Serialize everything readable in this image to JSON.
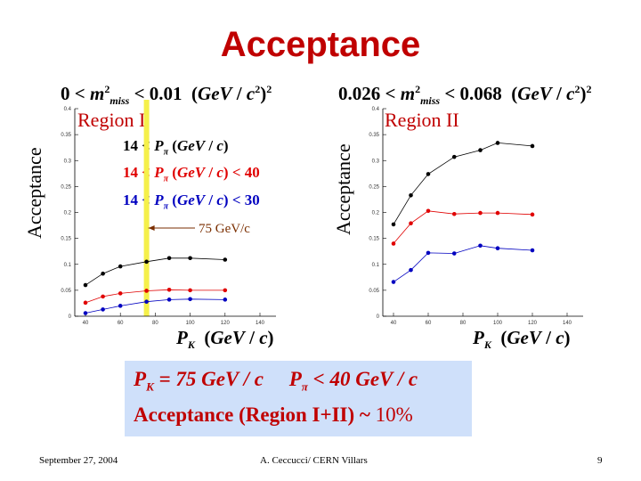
{
  "slide": {
    "title": "Acceptance",
    "box_line1": "P_K = 75 GeV / c    P_π < 40 GeV / c",
    "box_line2_a": "Acceptance (Region I+II) ~ ",
    "box_line2_b": "10%",
    "footer_date": "September 27, 2004",
    "footer_author": "A. Ceccucci/ CERN    Villars",
    "footer_page": "9"
  },
  "chart_data": [
    {
      "type": "line",
      "title": "0 < m²miss < 0.01 (GeV / c²)²",
      "region_label": "Region I",
      "ylabel": "Acceptance",
      "xlabel": "P_K (GeV / c)",
      "xlim": [
        40,
        140
      ],
      "ylim": [
        0,
        0.4
      ],
      "xticks": [
        40,
        60,
        80,
        100,
        120,
        140
      ],
      "xtick_labels": [
        "40",
        "60",
        "80",
        "100",
        "120",
        "140"
      ],
      "yticks": [
        0,
        0.05,
        0.1,
        0.15,
        0.2,
        0.25,
        0.3,
        0.35,
        0.4
      ],
      "ytick_labels": [
        "0",
        "0.05",
        "0.1",
        "0.15",
        "0.2",
        "0.25",
        "0.3",
        "0.35",
        "0.4"
      ],
      "annotation": "75 GeV/c",
      "highlight_x": 75,
      "series": [
        {
          "name": "14 < P_π (GeV / c)",
          "color": "#000000",
          "points": [
            [
              40,
              0.06
            ],
            [
              50,
              0.082
            ],
            [
              60,
              0.096
            ],
            [
              75,
              0.105
            ],
            [
              88,
              0.112
            ],
            [
              100,
              0.112
            ],
            [
              120,
              0.109
            ]
          ]
        },
        {
          "name": "14 < P_π (GeV / c) < 40",
          "color": "#e00000",
          "points": [
            [
              40,
              0.026
            ],
            [
              50,
              0.038
            ],
            [
              60,
              0.044
            ],
            [
              75,
              0.049
            ],
            [
              88,
              0.051
            ],
            [
              100,
              0.05
            ],
            [
              120,
              0.05
            ]
          ]
        },
        {
          "name": "14 < P_π (GeV / c) < 30",
          "color": "#0000c0",
          "points": [
            [
              40,
              0.006
            ],
            [
              50,
              0.013
            ],
            [
              60,
              0.02
            ],
            [
              75,
              0.028
            ],
            [
              88,
              0.032
            ],
            [
              100,
              0.033
            ],
            [
              120,
              0.032
            ]
          ]
        }
      ]
    },
    {
      "type": "line",
      "title": "0.026 < m²miss < 0.068 (GeV / c²)²",
      "region_label": "Region II",
      "ylabel": "Acceptance",
      "xlabel": "P_K (GeV / c)",
      "xlim": [
        40,
        140
      ],
      "ylim": [
        0,
        0.4
      ],
      "xticks": [
        40,
        60,
        80,
        100,
        120,
        140
      ],
      "xtick_labels": [
        "40",
        "60",
        "80",
        "100",
        "120",
        "140"
      ],
      "yticks": [
        0,
        0.05,
        0.1,
        0.15,
        0.2,
        0.25,
        0.3,
        0.35,
        0.4
      ],
      "ytick_labels": [
        "0",
        "0.05",
        "0.1",
        "0.15",
        "0.2",
        "0.25",
        "0.3",
        "0.35",
        "0.4"
      ],
      "series": [
        {
          "name": "",
          "color": "#000000",
          "points": [
            [
              40,
              0.177
            ],
            [
              50,
              0.233
            ],
            [
              60,
              0.274
            ],
            [
              75,
              0.307
            ],
            [
              90,
              0.32
            ],
            [
              100,
              0.334
            ],
            [
              120,
              0.328
            ]
          ]
        },
        {
          "name": "",
          "color": "#e00000",
          "points": [
            [
              40,
              0.14
            ],
            [
              50,
              0.179
            ],
            [
              60,
              0.203
            ],
            [
              75,
              0.197
            ],
            [
              90,
              0.199
            ],
            [
              100,
              0.199
            ],
            [
              120,
              0.196
            ]
          ]
        },
        {
          "name": "",
          "color": "#0000c0",
          "points": [
            [
              40,
              0.066
            ],
            [
              50,
              0.089
            ],
            [
              60,
              0.122
            ],
            [
              75,
              0.121
            ],
            [
              90,
              0.136
            ],
            [
              100,
              0.131
            ],
            [
              120,
              0.127
            ]
          ]
        }
      ]
    }
  ]
}
